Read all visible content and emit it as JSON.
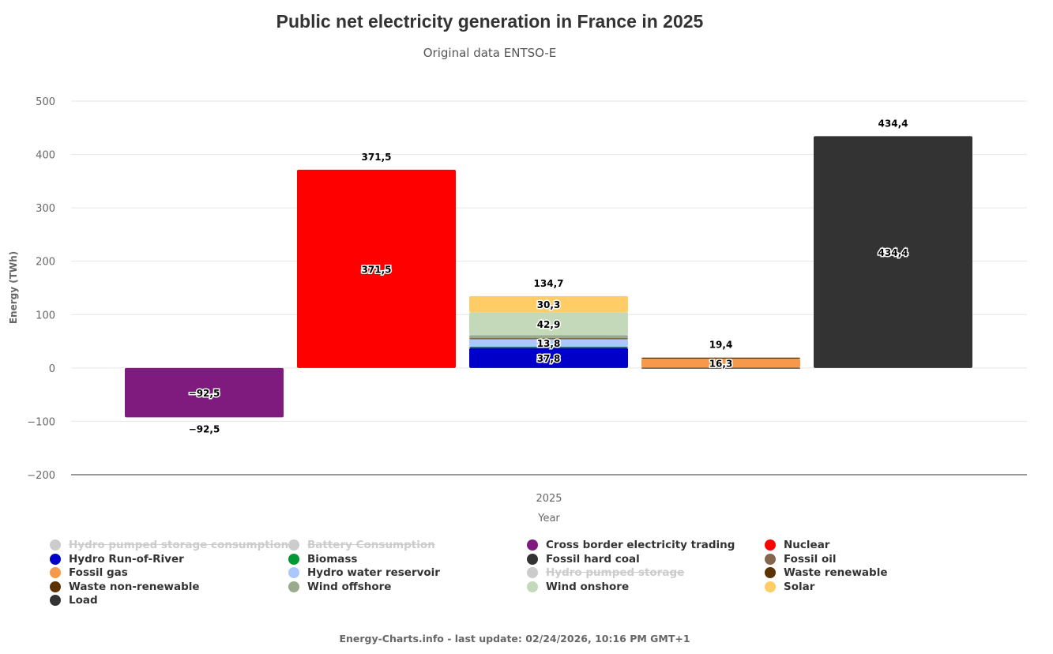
{
  "chart_data": {
    "type": "bar",
    "title": "Public net electricity generation in France in 2025",
    "subtitle": "Original data ENTSO-E",
    "xlabel": "Year",
    "ylabel": "Energy (TWh)",
    "categories": [
      "2025"
    ],
    "ylim": [
      -200,
      500
    ],
    "yticks": [
      -200,
      -100,
      0,
      100,
      200,
      300,
      400,
      500
    ],
    "grid": true,
    "legend_position": "bottom",
    "stacks": [
      {
        "total": -92.5
      },
      {
        "total": 371.5
      },
      {
        "total": 134.7
      },
      {
        "total": 19.4
      },
      {
        "total": 434.4
      }
    ],
    "series": [
      {
        "name": "Hydro pumped storage consumption",
        "color": "#cccccc",
        "hidden": true,
        "stack": null,
        "value": null
      },
      {
        "name": "Battery Consumption",
        "color": "#cccccc",
        "hidden": true,
        "stack": null,
        "value": null
      },
      {
        "name": "Cross border electricity trading",
        "color": "#7f1a7f",
        "stack": 0,
        "value": -92.5,
        "label": true
      },
      {
        "name": "Nuclear",
        "color": "#ff0000",
        "stack": 1,
        "value": 371.5,
        "label": true
      },
      {
        "name": "Hydro Run-of-River",
        "color": "#0000c8",
        "stack": 2,
        "value": 37.8,
        "label": true
      },
      {
        "name": "Biomass",
        "color": "#009933",
        "stack": 2,
        "value": 2.4
      },
      {
        "name": "Fossil hard coal",
        "color": "#333333",
        "stack": 3,
        "value": 0.1
      },
      {
        "name": "Fossil oil",
        "color": "#84664f",
        "stack": 3,
        "value": 1.0
      },
      {
        "name": "Fossil gas",
        "color": "#f7994a",
        "stack": 3,
        "value": 16.3,
        "label": true
      },
      {
        "name": "Hydro water reservoir",
        "color": "#aac8ff",
        "stack": 2,
        "value": 13.8,
        "label": true
      },
      {
        "name": "Hydro pumped storage",
        "color": "#cccccc",
        "hidden": true,
        "stack": null,
        "value": null
      },
      {
        "name": "Waste renewable",
        "color": "#5c3200",
        "stack": 2,
        "value": 1.6
      },
      {
        "name": "Waste non-renewable",
        "color": "#5c3200",
        "stack": 3,
        "value": 2.0
      },
      {
        "name": "Wind offshore",
        "color": "#99ab8c",
        "stack": 2,
        "value": 5.9
      },
      {
        "name": "Wind onshore",
        "color": "#c4d9b9",
        "stack": 2,
        "value": 42.9,
        "label": true
      },
      {
        "name": "Solar",
        "color": "#ffcc66",
        "stack": 2,
        "value": 30.3,
        "label": true
      },
      {
        "name": "Load",
        "color": "#333333",
        "stack": 4,
        "value": 434.4,
        "label": true
      }
    ]
  },
  "footer": "Energy-Charts.info - last update: 02/24/2026, 10:16 PM GMT+1"
}
